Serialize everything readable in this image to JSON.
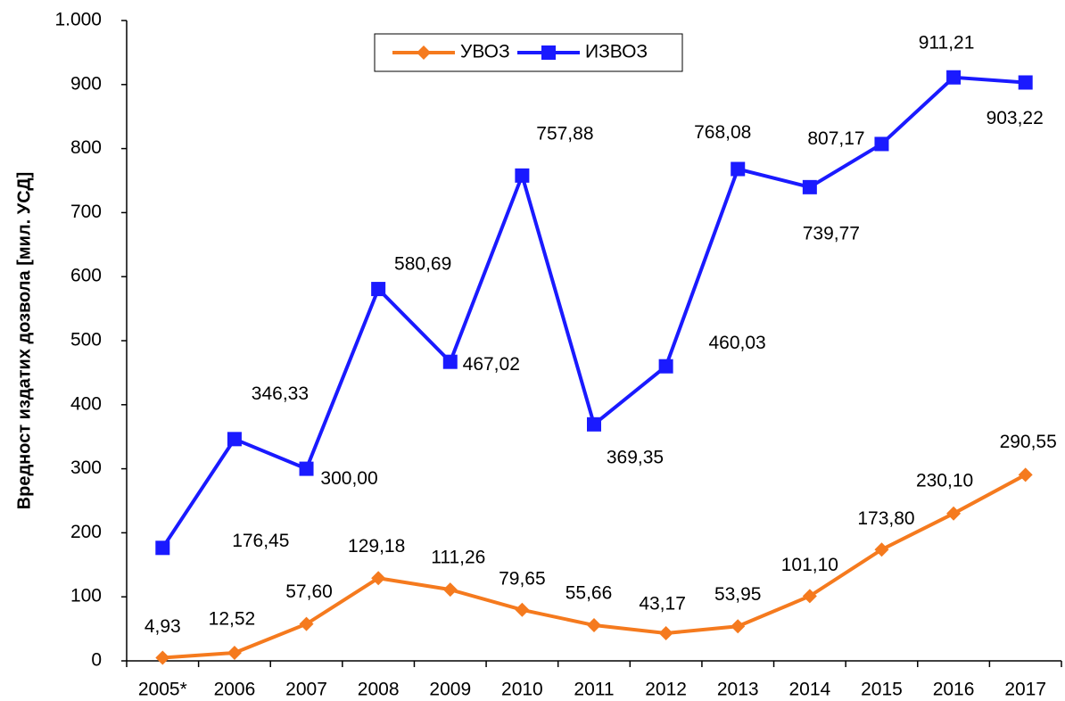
{
  "chart_data": {
    "type": "line",
    "y_label": "Вредност издатих дозвола [мил.  УСД]",
    "categories": [
      "2005*",
      "2006",
      "2007",
      "2008",
      "2009",
      "2010",
      "2011",
      "2012",
      "2013",
      "2014",
      "2015",
      "2016",
      "2017"
    ],
    "series": [
      {
        "name": "УВОЗ",
        "color": "#f57a1e",
        "marker": "diamond",
        "values": [
          4.93,
          12.52,
          57.6,
          129.18,
          111.26,
          79.65,
          55.66,
          43.17,
          53.95,
          101.1,
          173.8,
          230.1,
          290.55
        ],
        "value_labels": [
          "4,93",
          "12,52",
          "57,60",
          "129,18",
          "111,26",
          "79,65",
          "55,66",
          "43,17",
          "53,95",
          "101,10",
          "173,80",
          "230,10",
          "290,55"
        ]
      },
      {
        "name": "ИЗВОЗ",
        "color": "#1a1aff",
        "marker": "square",
        "values": [
          176.45,
          346.33,
          300.0,
          580.69,
          467.02,
          757.88,
          369.35,
          460.03,
          768.08,
          739.77,
          807.17,
          911.21,
          903.22
        ],
        "value_labels": [
          "176,45",
          "346,33",
          "300,00",
          "580,69",
          "467,02",
          "757,88",
          "369,35",
          "460,03",
          "768,08",
          "739,77",
          "807,17",
          "911,21",
          "903,22"
        ]
      }
    ],
    "ylim": [
      0,
      1000
    ],
    "yticks": [
      0,
      100,
      200,
      300,
      400,
      500,
      600,
      700,
      800,
      900,
      {
        "value": 1000,
        "label": "1.000"
      }
    ],
    "legend": "top"
  }
}
